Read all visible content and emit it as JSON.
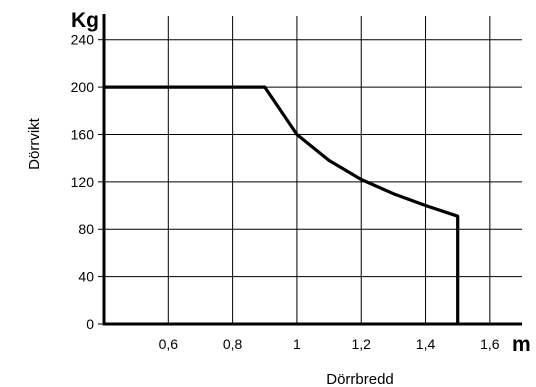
{
  "chart_data": {
    "type": "line",
    "x": [
      0.4,
      0.9,
      1.0,
      1.1,
      1.2,
      1.3,
      1.4,
      1.5,
      1.5
    ],
    "series": [
      {
        "values": [
          200,
          200,
          160,
          138,
          122,
          110,
          100,
          91,
          0
        ]
      }
    ],
    "xlim": [
      0.4,
      1.7
    ],
    "ylim": [
      0,
      260
    ],
    "x_ticks": [
      0.6,
      0.8,
      1.0,
      1.2,
      1.4,
      1.6
    ],
    "x_tick_labels": [
      "0,6",
      "0,8",
      "1",
      "1,2",
      "1,4",
      "1,6"
    ],
    "y_ticks": [
      0,
      40,
      80,
      120,
      160,
      200,
      240
    ],
    "y_tick_labels": [
      "0",
      "40",
      "80",
      "120",
      "160",
      "200",
      "240"
    ],
    "x_unit": "m",
    "y_unit": "Kg",
    "xlabel": "Dörrbredd",
    "ylabel": "Dörrvikt",
    "grid": true,
    "line_color": "#000000",
    "grid_color": "#000000"
  }
}
